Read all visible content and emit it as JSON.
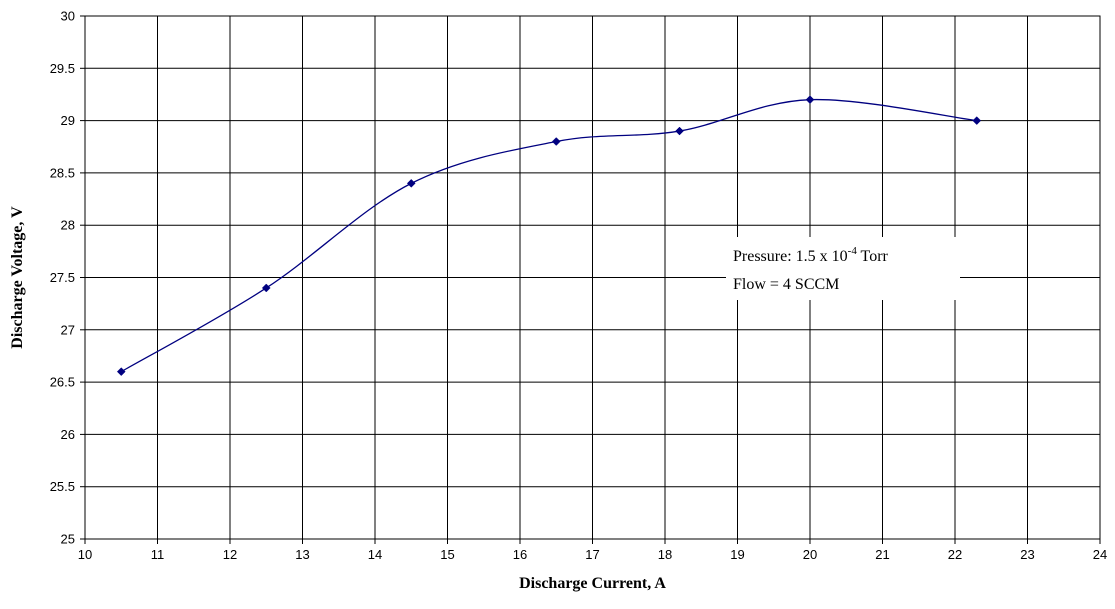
{
  "chart_data": {
    "type": "line",
    "title": "",
    "xlabel": "Discharge Current, A",
    "ylabel": "Discharge Voltage, V",
    "xlim": [
      10,
      24
    ],
    "ylim": [
      25,
      30
    ],
    "xticks": [
      "10",
      "11",
      "12",
      "13",
      "14",
      "15",
      "16",
      "17",
      "18",
      "19",
      "20",
      "21",
      "22",
      "23",
      "24"
    ],
    "yticks": [
      "25",
      "25.5",
      "26",
      "26.5",
      "27",
      "27.5",
      "28",
      "28.5",
      "29",
      "29.5",
      "30"
    ],
    "grid": true,
    "smooth": true,
    "series": [
      {
        "name": "",
        "color": "#000080",
        "marker": "diamond",
        "x": [
          10.5,
          12.5,
          14.5,
          16.5,
          18.2,
          20.0,
          22.3
        ],
        "y": [
          26.6,
          27.4,
          28.4,
          28.8,
          28.9,
          29.2,
          29.0
        ]
      }
    ],
    "annotation": {
      "pressure_prefix": "Pressure: 1.5 x 10",
      "pressure_exponent": "-4",
      "pressure_suffix": " Torr",
      "flow": "Flow = 4 SCCM"
    }
  }
}
